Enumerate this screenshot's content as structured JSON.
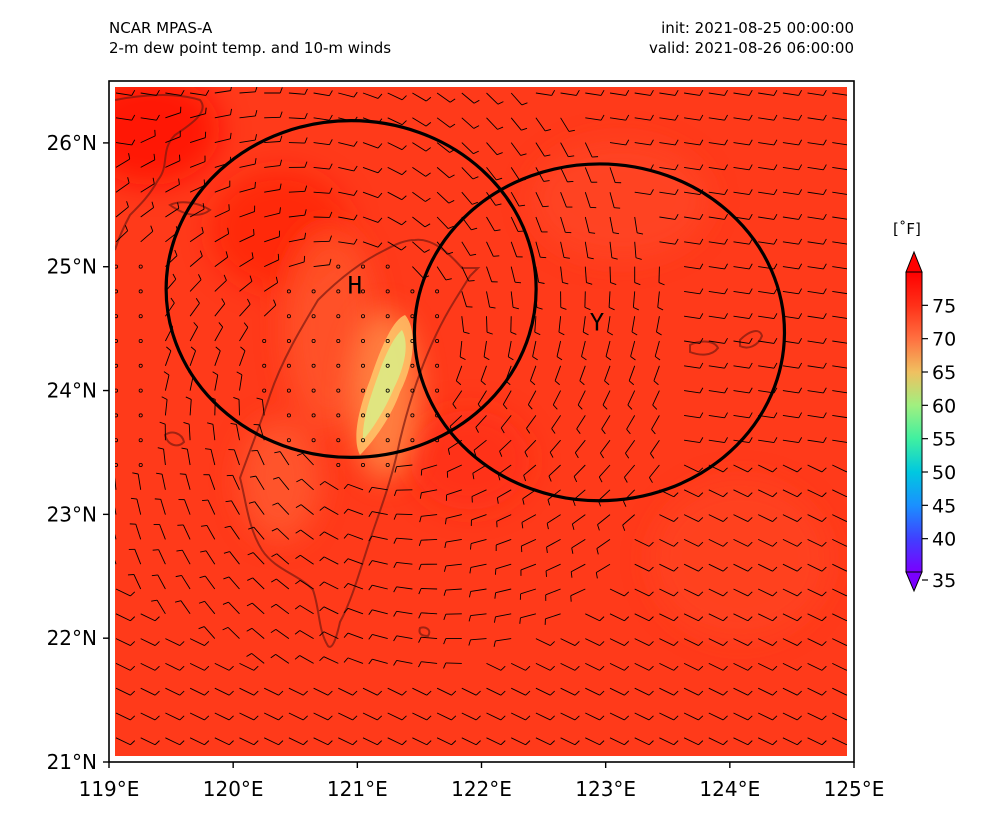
{
  "header": {
    "model": "NCAR MPAS-A",
    "field": "2-m dew point temp. and 10-m winds",
    "init": "init: 2021-08-25 00:00:00",
    "valid": "valid: 2021-08-26 06:00:00"
  },
  "map": {
    "lon_range": [
      119,
      125
    ],
    "lat_range": [
      21,
      26.5
    ],
    "lon_ticks": [
      {
        "value": 119,
        "label": "119°E"
      },
      {
        "value": 120,
        "label": "120°E"
      },
      {
        "value": 121,
        "label": "121°E"
      },
      {
        "value": 122,
        "label": "122°E"
      },
      {
        "value": 123,
        "label": "123°E"
      },
      {
        "value": 124,
        "label": "124°E"
      },
      {
        "value": 125,
        "label": "125°E"
      }
    ],
    "lat_ticks": [
      {
        "value": 21,
        "label": "21°N"
      },
      {
        "value": 22,
        "label": "22°N"
      },
      {
        "value": 23,
        "label": "23°N"
      },
      {
        "value": 24,
        "label": "24°N"
      },
      {
        "value": 25,
        "label": "25°N"
      },
      {
        "value": 26,
        "label": "26°N"
      }
    ],
    "background_color": "#ff3a1a",
    "markers": [
      {
        "label": "H",
        "lon": 120.98,
        "lat": 24.85
      },
      {
        "label": "Y",
        "lon": 122.93,
        "lat": 24.55
      }
    ],
    "circles": [
      {
        "center_lon": 120.95,
        "center_lat": 24.82,
        "radius_lon": 1.49,
        "radius_lat": 1.36
      },
      {
        "center_lon": 122.95,
        "center_lat": 24.47,
        "radius_lon": 1.49,
        "radius_lat": 1.36
      }
    ]
  },
  "colorbar": {
    "unit": "[˚F]",
    "min": 35,
    "max": 80,
    "ticks": [
      "35",
      "40",
      "45",
      "50",
      "55",
      "60",
      "65",
      "70",
      "75"
    ],
    "colors": [
      "#7a00ff",
      "#4040ff",
      "#1a90ff",
      "#00c8e0",
      "#40f0a0",
      "#a0f080",
      "#f0c060",
      "#ff7040",
      "#ff3018",
      "#ff0000"
    ]
  }
}
